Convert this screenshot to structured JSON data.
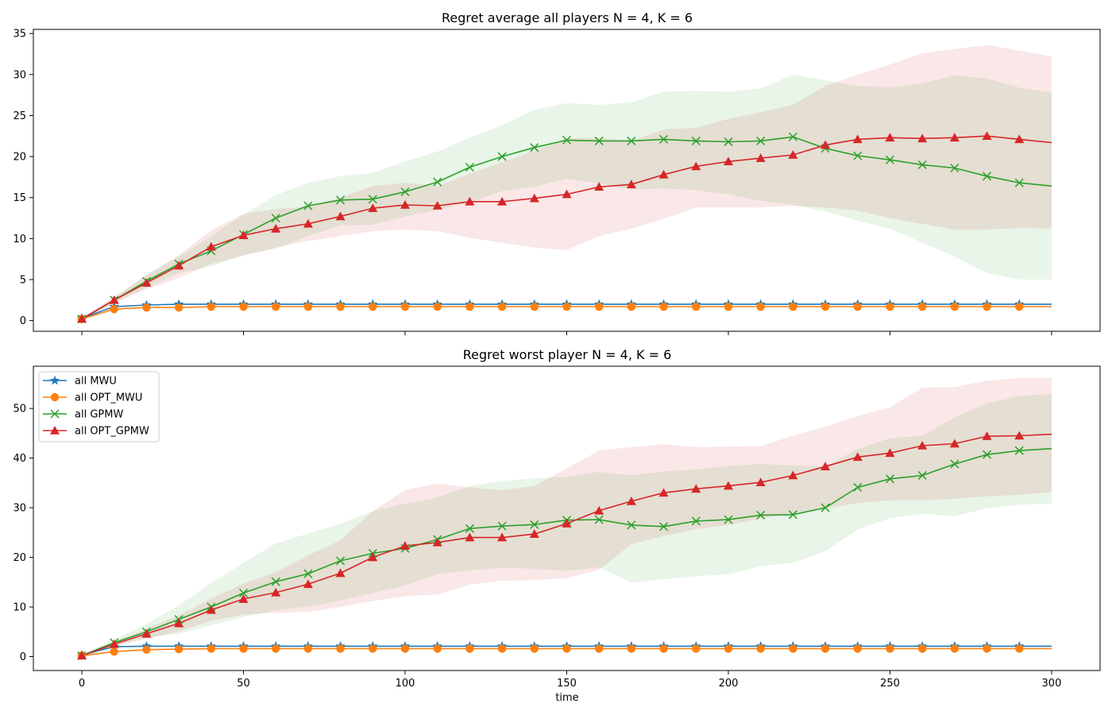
{
  "colors": {
    "MWU": "#1f77b4",
    "OPT_MWU": "#ff7f0e",
    "GPMW": "#2ca02c",
    "OPT_GPMW": "#d62728"
  },
  "legend": {
    "placement": "upper-left of bottom panel",
    "entries": [
      {
        "key": "MWU",
        "label": "all MWU",
        "marker": "star"
      },
      {
        "key": "OPT_MWU",
        "label": "all OPT_MWU",
        "marker": "circle"
      },
      {
        "key": "GPMW",
        "label": "all GPMW",
        "marker": "x"
      },
      {
        "key": "OPT_GPMW",
        "label": "all OPT_GPMW",
        "marker": "triangle"
      }
    ]
  },
  "chart_data": [
    {
      "type": "line",
      "title": "Regret average all players N = 4, K = 6",
      "xlabel": "",
      "ylabel": "",
      "xlim": [
        -15,
        315
      ],
      "ylim": [
        -1.3,
        35.5
      ],
      "xticks": [
        0,
        50,
        100,
        150,
        200,
        250,
        300
      ],
      "show_xticklabels": false,
      "yticks": [
        0,
        5,
        10,
        15,
        20,
        25,
        30,
        35
      ],
      "grid": false,
      "x": [
        0,
        10,
        20,
        30,
        40,
        50,
        60,
        70,
        80,
        90,
        100,
        110,
        120,
        130,
        140,
        150,
        160,
        170,
        180,
        190,
        200,
        210,
        220,
        230,
        240,
        250,
        260,
        270,
        280,
        290,
        300
      ],
      "series": [
        {
          "key": "MWU",
          "name": "all MWU",
          "values": [
            0.3,
            1.7,
            1.9,
            2.0,
            2.0,
            2.0,
            2.0,
            2.0,
            2.0,
            2.0,
            2.0,
            2.0,
            2.0,
            2.0,
            2.0,
            2.0,
            2.0,
            2.0,
            2.0,
            2.0,
            2.0,
            2.0,
            2.0,
            2.0,
            2.0,
            2.0,
            2.0,
            2.0,
            2.0,
            2.0,
            2.0
          ]
        },
        {
          "key": "OPT_MWU",
          "name": "all OPT_MWU",
          "values": [
            0.2,
            1.4,
            1.6,
            1.6,
            1.7,
            1.7,
            1.7,
            1.7,
            1.7,
            1.7,
            1.7,
            1.7,
            1.7,
            1.7,
            1.7,
            1.7,
            1.7,
            1.7,
            1.7,
            1.7,
            1.7,
            1.7,
            1.7,
            1.7,
            1.7,
            1.7,
            1.7,
            1.7,
            1.7,
            1.7,
            1.7
          ]
        },
        {
          "key": "GPMW",
          "name": "all GPMW",
          "values": [
            0.2,
            2.5,
            4.8,
            6.9,
            8.5,
            10.5,
            12.5,
            14.0,
            14.7,
            14.8,
            15.7,
            16.9,
            18.7,
            20.0,
            21.1,
            22.0,
            21.9,
            21.9,
            22.1,
            21.9,
            21.8,
            21.9,
            22.4,
            21.0,
            20.1,
            19.6,
            19.0,
            18.6,
            17.6,
            16.8,
            16.4
          ],
          "lower": [
            0.1,
            2.2,
            4.0,
            5.8,
            6.6,
            8.0,
            8.8,
            10.3,
            11.6,
            11.7,
            12.7,
            13.5,
            14.4,
            15.8,
            16.3,
            17.3,
            16.7,
            16.0,
            16.1,
            15.9,
            15.4,
            14.6,
            14.1,
            13.3,
            12.2,
            11.2,
            9.5,
            7.8,
            5.8,
            5.0,
            5.0
          ],
          "upper": [
            0.3,
            2.8,
            5.6,
            7.8,
            10.3,
            12.9,
            15.3,
            16.8,
            17.6,
            18.0,
            19.4,
            20.6,
            22.3,
            23.8,
            25.7,
            26.5,
            26.3,
            26.6,
            27.9,
            28.0,
            27.9,
            28.3,
            30.0,
            29.3,
            28.6,
            28.4,
            28.9,
            29.9,
            29.5,
            28.4,
            27.8
          ]
        },
        {
          "key": "OPT_GPMW",
          "name": "all OPT_GPMW",
          "values": [
            0.2,
            2.5,
            4.6,
            6.7,
            9.0,
            10.4,
            11.2,
            11.8,
            12.7,
            13.7,
            14.1,
            14.0,
            14.5,
            14.5,
            14.9,
            15.4,
            16.3,
            16.6,
            17.8,
            18.8,
            19.4,
            19.8,
            20.2,
            21.4,
            22.1,
            22.3,
            22.2,
            22.3,
            22.5,
            22.1,
            21.7
          ],
          "lower": [
            0.1,
            2.1,
            3.8,
            5.2,
            6.9,
            7.9,
            8.9,
            9.7,
            10.3,
            10.9,
            11.1,
            10.9,
            10.1,
            9.5,
            8.9,
            8.6,
            10.3,
            11.2,
            12.4,
            13.8,
            13.8,
            13.8,
            14.0,
            13.8,
            13.4,
            12.5,
            11.8,
            11.1,
            11.1,
            11.3,
            11.2
          ],
          "upper": [
            0.3,
            2.9,
            5.5,
            8.0,
            11.0,
            13.0,
            13.6,
            13.9,
            15.0,
            16.4,
            16.8,
            16.4,
            17.9,
            19.3,
            20.7,
            22.2,
            22.3,
            21.9,
            23.3,
            23.5,
            24.6,
            25.4,
            26.3,
            28.6,
            30.0,
            31.2,
            32.6,
            33.1,
            33.6,
            32.9,
            32.2
          ]
        }
      ]
    },
    {
      "type": "line",
      "title": "Regret worst player N = 4, K = 6",
      "xlabel": "time",
      "ylabel": "",
      "xlim": [
        -15,
        315
      ],
      "ylim": [
        -2.8,
        58.5
      ],
      "xticks": [
        0,
        50,
        100,
        150,
        200,
        250,
        300
      ],
      "show_xticklabels": true,
      "yticks": [
        0,
        10,
        20,
        30,
        40,
        50
      ],
      "grid": false,
      "x": [
        0,
        10,
        20,
        30,
        40,
        50,
        60,
        70,
        80,
        90,
        100,
        110,
        120,
        130,
        140,
        150,
        160,
        170,
        180,
        190,
        200,
        210,
        220,
        230,
        240,
        250,
        260,
        270,
        280,
        290,
        300
      ],
      "series": [
        {
          "key": "MWU",
          "name": "all MWU",
          "values": [
            0.3,
            2.0,
            2.1,
            2.1,
            2.1,
            2.1,
            2.1,
            2.1,
            2.1,
            2.1,
            2.1,
            2.1,
            2.1,
            2.1,
            2.1,
            2.1,
            2.1,
            2.1,
            2.1,
            2.1,
            2.1,
            2.1,
            2.1,
            2.1,
            2.1,
            2.1,
            2.1,
            2.1,
            2.1,
            2.1,
            2.1
          ]
        },
        {
          "key": "OPT_MWU",
          "name": "all OPT_MWU",
          "values": [
            0.2,
            1.0,
            1.4,
            1.5,
            1.6,
            1.6,
            1.6,
            1.6,
            1.6,
            1.6,
            1.6,
            1.6,
            1.6,
            1.6,
            1.6,
            1.6,
            1.6,
            1.6,
            1.6,
            1.6,
            1.6,
            1.6,
            1.6,
            1.6,
            1.6,
            1.6,
            1.6,
            1.6,
            1.6,
            1.6,
            1.6
          ]
        },
        {
          "key": "GPMW",
          "name": "all GPMW",
          "values": [
            0.2,
            2.8,
            5.0,
            7.5,
            10.0,
            12.8,
            15.1,
            16.7,
            19.3,
            20.8,
            21.8,
            23.6,
            25.8,
            26.3,
            26.6,
            27.5,
            27.6,
            26.5,
            26.2,
            27.3,
            27.6,
            28.5,
            28.6,
            30.0,
            34.1,
            35.8,
            36.5,
            38.8,
            40.7,
            41.5,
            41.9
          ],
          "lower": [
            0.1,
            2.2,
            3.8,
            4.6,
            6.3,
            8.0,
            9.3,
            10.1,
            11.3,
            12.8,
            14.3,
            16.6,
            17.4,
            17.9,
            17.7,
            17.3,
            18.0,
            14.9,
            15.6,
            16.2,
            16.6,
            18.2,
            18.9,
            21.2,
            25.6,
            27.9,
            28.8,
            28.3,
            29.9,
            30.6,
            30.8
          ],
          "upper": [
            0.3,
            3.5,
            6.6,
            10.3,
            14.8,
            18.9,
            22.8,
            24.8,
            26.8,
            29.3,
            30.8,
            32.0,
            34.4,
            35.4,
            35.9,
            36.2,
            37.2,
            36.5,
            37.3,
            37.7,
            38.4,
            38.8,
            38.5,
            38.3,
            41.8,
            44.0,
            44.5,
            48.2,
            51.0,
            52.5,
            52.9
          ]
        },
        {
          "key": "OPT_GPMW",
          "name": "all OPT_GPMW",
          "values": [
            0.2,
            2.5,
            4.6,
            6.7,
            9.4,
            11.6,
            12.9,
            14.6,
            16.8,
            20.0,
            22.3,
            23.0,
            24.0,
            24.0,
            24.7,
            26.8,
            29.4,
            31.3,
            33.0,
            33.8,
            34.4,
            35.1,
            36.5,
            38.3,
            40.2,
            41.0,
            42.5,
            42.9,
            44.4,
            44.5,
            44.8
          ],
          "lower": [
            0.1,
            2.0,
            3.6,
            5.1,
            7.2,
            8.5,
            8.8,
            9.0,
            10.0,
            11.2,
            12.2,
            12.5,
            14.5,
            15.3,
            15.4,
            15.8,
            17.5,
            22.7,
            24.3,
            25.7,
            26.5,
            27.8,
            28.8,
            29.8,
            30.9,
            31.5,
            31.5,
            31.8,
            32.3,
            32.6,
            33.2
          ],
          "upper": [
            0.3,
            3.0,
            5.6,
            8.3,
            11.7,
            14.7,
            17.0,
            20.4,
            23.4,
            29.3,
            33.6,
            34.9,
            34.1,
            33.5,
            34.4,
            37.9,
            41.5,
            42.2,
            42.8,
            42.2,
            42.3,
            42.4,
            44.5,
            46.3,
            48.5,
            50.2,
            54.2,
            54.3,
            55.6,
            56.1,
            56.2
          ]
        }
      ]
    }
  ]
}
